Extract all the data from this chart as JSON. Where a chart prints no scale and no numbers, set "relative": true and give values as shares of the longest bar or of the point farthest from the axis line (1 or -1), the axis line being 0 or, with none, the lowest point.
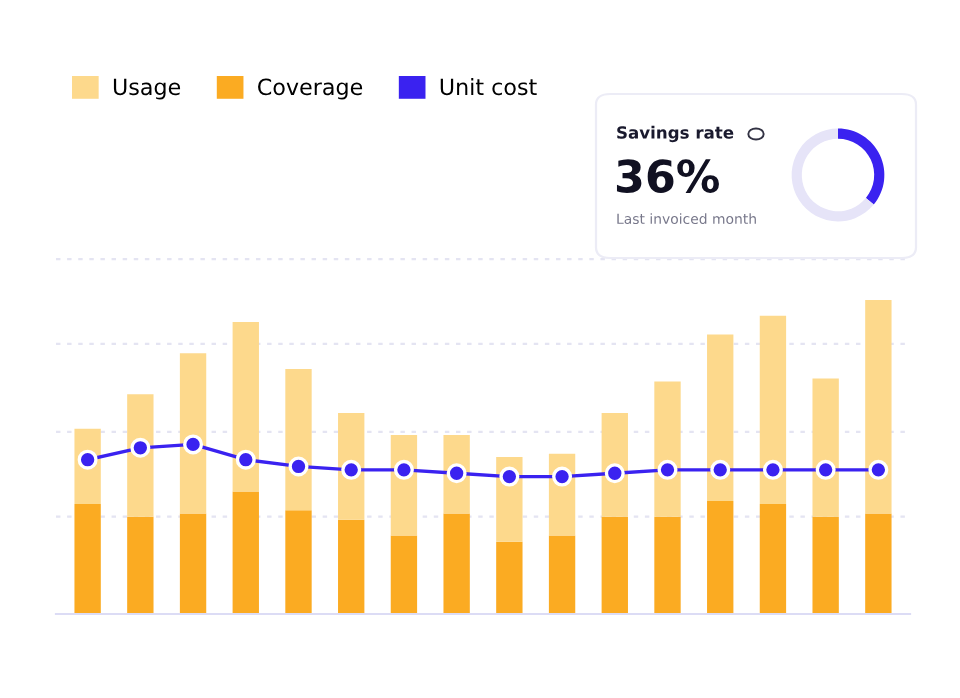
{
  "chart_data": [
    {
      "type": "bar",
      "relative": true,
      "stacked": true,
      "categories": [
        null,
        null,
        null,
        null,
        null,
        null,
        null,
        null,
        null,
        null,
        null,
        null,
        null,
        null,
        null,
        null
      ],
      "ref_lines": [
        {
          "axis": "y",
          "value": 0.31,
          "color": "#e4e4f2",
          "line_style": "dashed"
        },
        {
          "axis": "y",
          "value": 0.58,
          "color": "#e4e4f2",
          "line_style": "dashed"
        },
        {
          "axis": "y",
          "value": 0.86,
          "color": "#e4e4f2",
          "line_style": "dashed"
        },
        {
          "axis": "y",
          "value": 1.13,
          "color": "#e4e4f2",
          "line_style": "dashed"
        }
      ],
      "legend": "top left",
      "series": [
        {
          "name": "Coverage",
          "color": "#fbab22",
          "values": [
            0.35,
            0.31,
            0.32,
            0.39,
            0.33,
            0.3,
            0.25,
            0.32,
            0.23,
            0.25,
            0.31,
            0.31,
            0.36,
            0.35,
            0.31,
            0.32
          ]
        },
        {
          "name": "Usage",
          "color": "#fdd98c",
          "values": [
            0.24,
            0.39,
            0.51,
            0.54,
            0.45,
            0.34,
            0.32,
            0.25,
            0.27,
            0.26,
            0.33,
            0.43,
            0.53,
            0.6,
            0.44,
            0.68
          ]
        }
      ]
    },
    {
      "type": "line",
      "relative": true,
      "categories": [
        null,
        null,
        null,
        null,
        null,
        null,
        null,
        null,
        null,
        null,
        null,
        null,
        null,
        null,
        null,
        null
      ],
      "marker": "circle",
      "legend": "top left",
      "series": [
        {
          "name": "Unit cost",
          "color": "#3a22f0",
          "values": [
            0.91,
            0.98,
            1,
            0.91,
            0.87,
            0.85,
            0.85,
            0.83,
            0.81,
            0.81,
            0.83,
            0.85,
            0.85,
            0.85,
            0.85,
            0.85
          ]
        }
      ]
    },
    {
      "type": "donut",
      "title": "Savings rate",
      "subtitle": "Last invoiced month",
      "categories": [
        null,
        null
      ],
      "values": [
        36,
        64
      ],
      "colors": [
        "#3a22f0",
        "#e6e4f8"
      ],
      "annotations": [
        "36%"
      ]
    }
  ]
}
